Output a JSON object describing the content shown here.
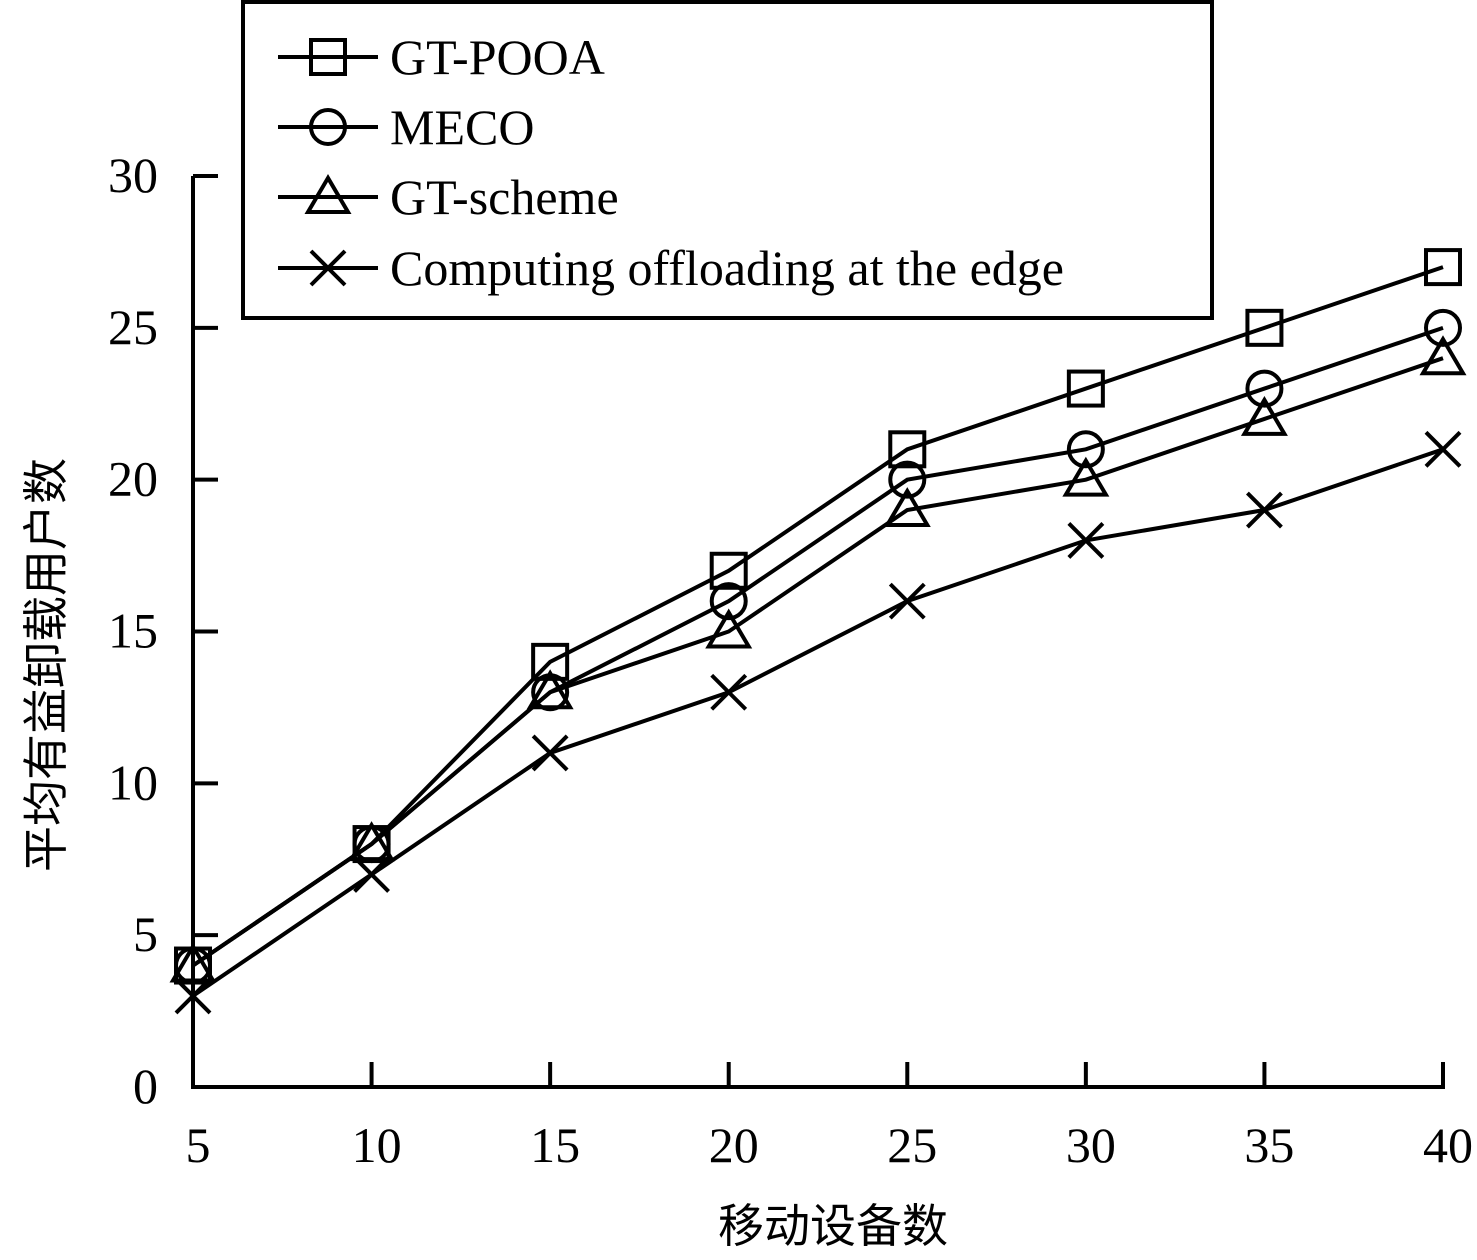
{
  "chart_data": {
    "type": "line",
    "title": "",
    "xlabel": "移动设备数",
    "ylabel": "平均有益卸载用户数",
    "x": [
      5,
      10,
      15,
      20,
      25,
      30,
      35,
      40
    ],
    "x_tick_labels": [
      "5",
      "10",
      "15",
      "20",
      "25",
      "30",
      "35",
      "40"
    ],
    "y_tick_labels": [
      "0",
      "5",
      "10",
      "15",
      "20",
      "25",
      "30"
    ],
    "y_ticks": [
      0,
      5,
      10,
      15,
      20,
      25,
      30
    ],
    "xlim": [
      5,
      40
    ],
    "ylim": [
      0,
      30
    ],
    "grid": false,
    "legend_position": "top-left",
    "series": [
      {
        "name": "GT-POOA",
        "marker": "square",
        "values": [
          4,
          8,
          14,
          17,
          21,
          23,
          25,
          27
        ]
      },
      {
        "name": "MECO",
        "marker": "circle",
        "values": [
          4,
          8,
          13,
          16,
          20,
          21,
          23,
          25
        ]
      },
      {
        "name": "GT-scheme",
        "marker": "triangle",
        "values": [
          4,
          8,
          13,
          15,
          19,
          20,
          22,
          24
        ]
      },
      {
        "name": "Computing offloading at the edge",
        "marker": "x",
        "values": [
          3,
          7,
          11,
          13,
          16,
          18,
          19,
          21
        ]
      }
    ],
    "colors": {
      "line": "#000000",
      "background": "#ffffff"
    }
  }
}
